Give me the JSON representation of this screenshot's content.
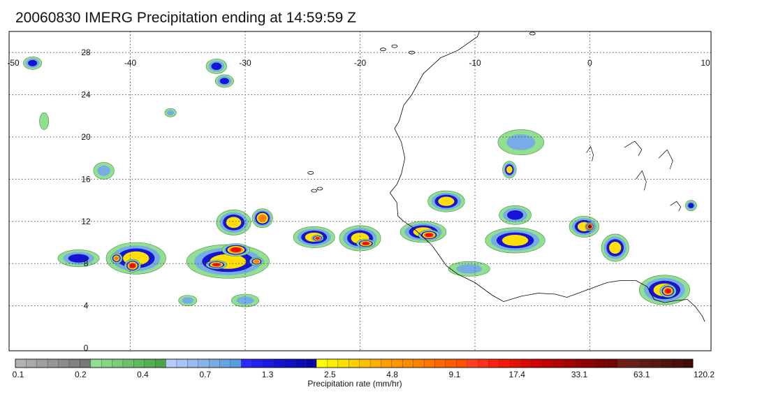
{
  "title": "20060830 IMERG Precipitation ending at 14:59:59 Z",
  "map": {
    "lon_range": [
      -50,
      10
    ],
    "lat_range": [
      -1,
      30
    ],
    "lon_ticks": [
      -50,
      -40,
      -30,
      -20,
      -10,
      0,
      10
    ],
    "lat_ticks": [
      0,
      4,
      8,
      12,
      16,
      20,
      24,
      28
    ],
    "lon_tick_labels": [
      "-50",
      "-40",
      "-30",
      "-20",
      "-10",
      "0",
      "10"
    ],
    "lat_tick_labels": [
      "0",
      "4",
      "8",
      "12",
      "16",
      "20",
      "24",
      "28"
    ],
    "grid": true,
    "coastline_color": "#000000"
  },
  "colorbar": {
    "title": "Precipitation rate (mm/hr)",
    "labels": [
      "0.1",
      "0.2",
      "0.4",
      "0.7",
      "1.3",
      "2.5",
      "4.8",
      "9.1",
      "17.4",
      "33.1",
      "63.1",
      "120.2"
    ],
    "colors": [
      "#b3b3b3",
      "#aaaaaa",
      "#a0a0a0",
      "#969696",
      "#8c8c8c",
      "#828282",
      "#787878",
      "#90e090",
      "#84d684",
      "#78cc78",
      "#6cc36c",
      "#60b960",
      "#54b054",
      "#48a648",
      "#b8ccff",
      "#a8c4f8",
      "#98bcf2",
      "#88b4ec",
      "#78ace6",
      "#68a4e0",
      "#589ce0",
      "#2a2aff",
      "#2222ee",
      "#1a1ae0",
      "#1414d2",
      "#0f0fc4",
      "#0a0ab6",
      "#0505a8",
      "#ffff00",
      "#fff000",
      "#ffe000",
      "#ffd000",
      "#ffc000",
      "#ffb000",
      "#ffa000",
      "#ff9600",
      "#ff8c00",
      "#ff8000",
      "#ff7400",
      "#ff6800",
      "#ff5c00",
      "#ff5000",
      "#ff4020",
      "#ff3018",
      "#ff2010",
      "#f51808",
      "#e81000",
      "#dc0800",
      "#d00000",
      "#c00000",
      "#b00000",
      "#a40000",
      "#980000",
      "#8c0000",
      "#800000",
      "#740000",
      "#702010",
      "#682018",
      "#601a14",
      "#581810",
      "#50140c",
      "#481008",
      "#400c04"
    ]
  },
  "precip_clusters": [
    {
      "lon": -48.5,
      "lat": 27.0,
      "lw": 0.8,
      "lh": 0.6,
      "level": 3
    },
    {
      "lon": -32.5,
      "lat": 26.7,
      "lw": 0.9,
      "lh": 0.7,
      "level": 3
    },
    {
      "lon": -31.8,
      "lat": 25.3,
      "lw": 0.8,
      "lh": 0.6,
      "level": 3
    },
    {
      "lon": -36.5,
      "lat": 22.3,
      "lw": 0.5,
      "lh": 0.4,
      "level": 2
    },
    {
      "lon": -42.3,
      "lat": 16.8,
      "lw": 0.9,
      "lh": 0.8,
      "level": 2
    },
    {
      "lon": -47.5,
      "lat": 21.5,
      "lw": 0.4,
      "lh": 0.8,
      "level": 1
    },
    {
      "lon": -44.5,
      "lat": 8.5,
      "lw": 1.8,
      "lh": 0.8,
      "level": 3
    },
    {
      "lon": -39.5,
      "lat": 8.5,
      "lw": 2.6,
      "lh": 1.5,
      "level": 4
    },
    {
      "lon": -39.8,
      "lat": 7.8,
      "lw": 0.7,
      "lh": 0.6,
      "level": 6
    },
    {
      "lon": -41.2,
      "lat": 8.5,
      "lw": 0.5,
      "lh": 0.5,
      "level": 5
    },
    {
      "lon": -31.5,
      "lat": 8.2,
      "lw": 3.6,
      "lh": 1.6,
      "level": 4
    },
    {
      "lon": -30.8,
      "lat": 9.3,
      "lw": 1.2,
      "lh": 0.6,
      "level": 6
    },
    {
      "lon": -32.5,
      "lat": 7.9,
      "lw": 0.9,
      "lh": 0.4,
      "level": 6
    },
    {
      "lon": -29.0,
      "lat": 8.2,
      "lw": 0.6,
      "lh": 0.4,
      "level": 5
    },
    {
      "lon": -31.0,
      "lat": 11.9,
      "lw": 1.5,
      "lh": 1.2,
      "level": 4
    },
    {
      "lon": -28.5,
      "lat": 12.3,
      "lw": 0.9,
      "lh": 0.9,
      "level": 5
    },
    {
      "lon": -24.0,
      "lat": 10.5,
      "lw": 1.8,
      "lh": 1.0,
      "level": 4
    },
    {
      "lon": -23.7,
      "lat": 10.4,
      "lw": 0.5,
      "lh": 0.3,
      "level": 6
    },
    {
      "lon": -20.0,
      "lat": 10.4,
      "lw": 1.8,
      "lh": 1.2,
      "level": 4
    },
    {
      "lon": -19.5,
      "lat": 9.9,
      "lw": 0.8,
      "lh": 0.4,
      "level": 6
    },
    {
      "lon": -14.5,
      "lat": 11.0,
      "lw": 2.0,
      "lh": 1.0,
      "level": 4
    },
    {
      "lon": -14.0,
      "lat": 10.7,
      "lw": 0.9,
      "lh": 0.5,
      "level": 6
    },
    {
      "lon": -12.5,
      "lat": 13.9,
      "lw": 1.6,
      "lh": 1.0,
      "level": 4
    },
    {
      "lon": -7.0,
      "lat": 16.9,
      "lw": 0.6,
      "lh": 0.8,
      "level": 4
    },
    {
      "lon": -6.5,
      "lat": 12.6,
      "lw": 1.4,
      "lh": 0.9,
      "level": 3
    },
    {
      "lon": -6.5,
      "lat": 10.2,
      "lw": 2.6,
      "lh": 1.2,
      "level": 4
    },
    {
      "lon": -0.5,
      "lat": 11.5,
      "lw": 1.3,
      "lh": 1.0,
      "level": 4
    },
    {
      "lon": 0.0,
      "lat": 11.5,
      "lw": 0.4,
      "lh": 0.4,
      "level": 7
    },
    {
      "lon": 2.2,
      "lat": 9.5,
      "lw": 1.2,
      "lh": 1.3,
      "level": 4
    },
    {
      "lon": 6.5,
      "lat": 5.5,
      "lw": 2.2,
      "lh": 1.4,
      "level": 4
    },
    {
      "lon": 6.8,
      "lat": 5.4,
      "lw": 0.7,
      "lh": 0.6,
      "level": 6
    },
    {
      "lon": 8.8,
      "lat": 13.5,
      "lw": 0.5,
      "lh": 0.5,
      "level": 3
    },
    {
      "lon": -6.0,
      "lat": 19.5,
      "lw": 2.0,
      "lh": 1.2,
      "level": 2
    },
    {
      "lon": -35.0,
      "lat": 4.5,
      "lw": 0.8,
      "lh": 0.5,
      "level": 2
    },
    {
      "lon": -30.0,
      "lat": 4.5,
      "lw": 1.2,
      "lh": 0.6,
      "level": 2
    },
    {
      "lon": -10.5,
      "lat": 7.5,
      "lw": 1.8,
      "lh": 0.7,
      "level": 2
    }
  ]
}
